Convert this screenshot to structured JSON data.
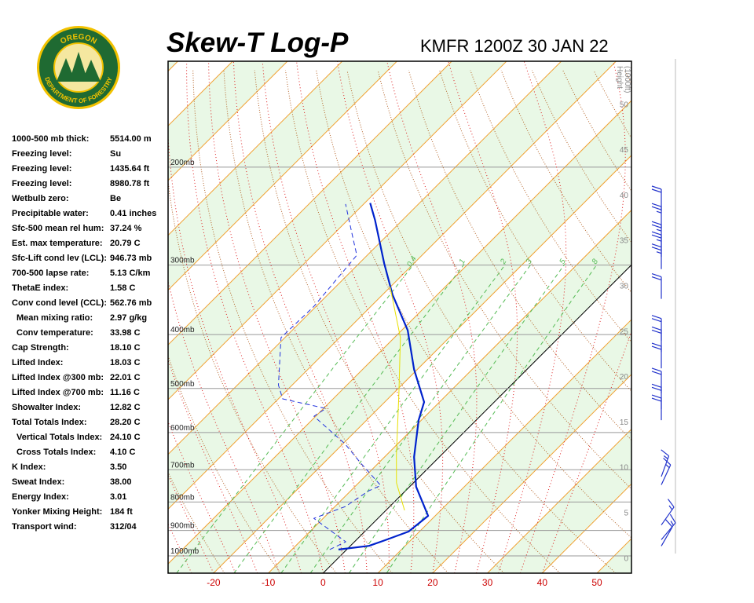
{
  "logo": {
    "top": "OREGON",
    "bottom": "DEPARTMENT OF FORESTRY"
  },
  "indices": [
    {
      "label": "1000-500 mb thick:",
      "value": "5514.00 m"
    },
    {
      "label": "Freezing level:",
      "value": "Su"
    },
    {
      "label": "Freezing level:",
      "value": "1435.64 ft"
    },
    {
      "label": "Freezing level:",
      "value": "8980.78 ft"
    },
    {
      "label": "Wetbulb zero:",
      "value": "Be"
    },
    {
      "label": "Precipitable water:",
      "value": "0.41 inches"
    },
    {
      "label": "Sfc-500 mean rel hum:",
      "value": "37.24 %"
    },
    {
      "label": "Est. max temperature:",
      "value": "20.79 C"
    },
    {
      "label": "Sfc-Lift cond lev (LCL):",
      "value": "946.73 mb"
    },
    {
      "label": "700-500 lapse rate:",
      "value": "5.13 C/km"
    },
    {
      "label": "ThetaE index:",
      "value": "1.58 C"
    },
    {
      "label": "Conv cond level (CCL):",
      "value": "562.76 mb"
    },
    {
      "label": "Mean mixing ratio:",
      "value": "2.97 g/kg",
      "indent": true
    },
    {
      "label": "Conv temperature:",
      "value": "33.98 C",
      "indent": true
    },
    {
      "label": "Cap Strength:",
      "value": "18.10 C"
    },
    {
      "label": "Lifted Index:",
      "value": "18.03 C"
    },
    {
      "label": "Lifted Index @300 mb:",
      "value": "22.01 C"
    },
    {
      "label": "Lifted Index @700 mb:",
      "value": "11.16 C"
    },
    {
      "label": "Showalter Index:",
      "value": "12.82 C"
    },
    {
      "label": "Total Totals Index:",
      "value": "28.20 C"
    },
    {
      "label": "Vertical Totals Index:",
      "value": "24.10 C",
      "indent": true
    },
    {
      "label": "Cross Totals Index:",
      "value": "4.10 C",
      "indent": true
    },
    {
      "label": "K Index:",
      "value": "3.50"
    },
    {
      "label": "Sweat Index:",
      "value": "38.00"
    },
    {
      "label": "Energy Index:",
      "value": "3.01"
    },
    {
      "label": "Yonker Mixing Height:",
      "value": "184 ft"
    },
    {
      "label": "Transport wind:",
      "value": "312/04"
    }
  ],
  "chart_data": {
    "type": "skew-t",
    "title": "Skew-T Log-P",
    "subtitle": "KMFR 1200Z 30 JAN 22",
    "xlim": [
      -28.3,
      56.3
    ],
    "xticks": [
      -20,
      -10,
      0,
      10,
      20,
      30,
      40,
      50
    ],
    "ylim": [
      1074,
      129
    ],
    "log_y": true,
    "yticks": [
      {
        "value": 1000,
        "label": "1000mb"
      },
      {
        "value": 900,
        "label": "900mb"
      },
      {
        "value": 800,
        "label": "800mb"
      },
      {
        "value": 700,
        "label": "700mb"
      },
      {
        "value": 600,
        "label": "600mb"
      },
      {
        "value": 500,
        "label": "500mb"
      },
      {
        "value": 400,
        "label": "400mb"
      },
      {
        "value": 300,
        "label": "300mb"
      },
      {
        "value": 200,
        "label": "200mb"
      }
    ],
    "y2label": [
      "Height",
      "(1000ft)"
    ],
    "y2lim": [
      -1.7,
      54.7
    ],
    "y2ticks": [
      0,
      5,
      10,
      15,
      20,
      25,
      30,
      35,
      40,
      45,
      50
    ],
    "highlight_isotherm": 0,
    "mixing_ratios": [
      0.4,
      1,
      2,
      3,
      5,
      8
    ],
    "series": [
      {
        "color": "#0022cc",
        "width": 2.2,
        "dashed": false,
        "pressure": [
          974,
          959,
          937,
          904,
          847,
          751,
          664,
          570,
          529,
          462,
          393,
          339,
          298,
          249,
          232
        ],
        "values": [
          -1.5,
          3.4,
          5.3,
          8.0,
          8.7,
          1.2,
          -4.6,
          -10.5,
          -12.8,
          -20.6,
          -28.9,
          -38.2,
          -45.4,
          -55,
          -59
        ]
      },
      {
        "color": "#2233dd",
        "width": 1,
        "dashed": true,
        "pressure": [
          974,
          943,
          856,
          815,
          764,
          747,
          682,
          629,
          561,
          543,
          522,
          493,
          405,
          356,
          288,
          266,
          233
        ],
        "values": [
          -3.1,
          -1.6,
          -11.7,
          -8.1,
          -6.7,
          -5.5,
          -13.1,
          -19.6,
          -30.3,
          -29.6,
          -39.2,
          -42.5,
          -50.7,
          -50.4,
          -51.9,
          -56.2,
          -63.3
        ]
      },
      {
        "color": "#e8e000",
        "width": 1,
        "dashed": false,
        "pressure": [
          828,
          739,
          660,
          509,
          405,
          328
        ],
        "values": [
          3.4,
          -3.1,
          -8.1,
          -19.1,
          -28.9,
          -40.1
        ]
      }
    ],
    "winds": [
      {
        "pressure": 960,
        "direction": 30,
        "speed": 10
      },
      {
        "pressure": 935,
        "direction": 40,
        "speed": 15
      },
      {
        "pressure": 880,
        "direction": 35,
        "speed": 15
      },
      {
        "pressure": 745,
        "direction": 25,
        "speed": 15
      },
      {
        "pressure": 720,
        "direction": 20,
        "speed": 15
      },
      {
        "pressure": 570,
        "direction": 0,
        "speed": 20
      },
      {
        "pressure": 545,
        "direction": 0,
        "speed": 20
      },
      {
        "pressure": 510,
        "direction": 0,
        "speed": 20
      },
      {
        "pressure": 460,
        "direction": 0,
        "speed": 20
      },
      {
        "pressure": 430,
        "direction": 0,
        "speed": 20
      },
      {
        "pressure": 410,
        "direction": 0,
        "speed": 20
      },
      {
        "pressure": 345,
        "direction": 0,
        "speed": 20
      },
      {
        "pressure": 305,
        "direction": 0,
        "speed": 25
      },
      {
        "pressure": 290,
        "direction": 0,
        "speed": 25
      },
      {
        "pressure": 278,
        "direction": 0,
        "speed": 25
      },
      {
        "pressure": 258,
        "direction": 0,
        "speed": 25
      },
      {
        "pressure": 240,
        "direction": 0,
        "speed": 20
      }
    ]
  }
}
